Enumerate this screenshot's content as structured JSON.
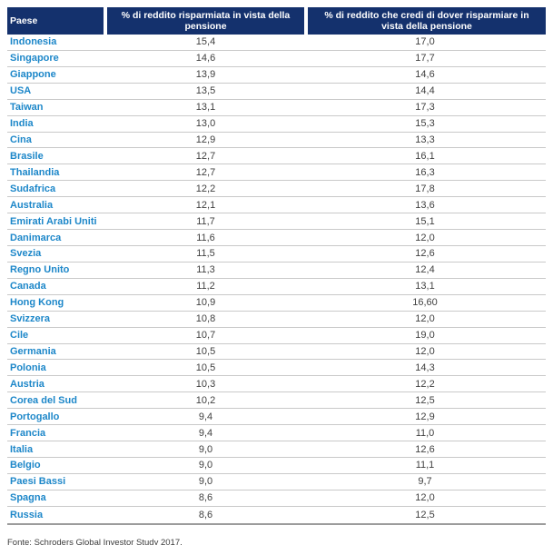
{
  "colors": {
    "header_bg": "#14316d",
    "country_text": "#1d87c9",
    "value_text": "#404040",
    "row_divider": "#c9c9c9",
    "bottom_rule": "#9c9c9c"
  },
  "table": {
    "headers": [
      "Paese",
      "% di reddito risparmiata in vista della pensione",
      "% di reddito che credi di dover risparmiare in vista della pensione"
    ],
    "rows": [
      {
        "paese": "Indonesia",
        "risparmiata": "15,4",
        "dover_risparmiare": "17,0"
      },
      {
        "paese": "Singapore",
        "risparmiata": "14,6",
        "dover_risparmiare": "17,7"
      },
      {
        "paese": "Giappone",
        "risparmiata": "13,9",
        "dover_risparmiare": "14,6"
      },
      {
        "paese": "USA",
        "risparmiata": "13,5",
        "dover_risparmiare": "14,4"
      },
      {
        "paese": "Taiwan",
        "risparmiata": "13,1",
        "dover_risparmiare": "17,3"
      },
      {
        "paese": "India",
        "risparmiata": "13,0",
        "dover_risparmiare": "15,3"
      },
      {
        "paese": "Cina",
        "risparmiata": "12,9",
        "dover_risparmiare": "13,3"
      },
      {
        "paese": "Brasile",
        "risparmiata": "12,7",
        "dover_risparmiare": "16,1"
      },
      {
        "paese": "Thailandia",
        "risparmiata": "12,7",
        "dover_risparmiare": "16,3"
      },
      {
        "paese": "Sudafrica",
        "risparmiata": "12,2",
        "dover_risparmiare": "17,8"
      },
      {
        "paese": "Australia",
        "risparmiata": "12,1",
        "dover_risparmiare": "13,6"
      },
      {
        "paese": "Emirati Arabi Uniti",
        "risparmiata": "11,7",
        "dover_risparmiare": "15,1"
      },
      {
        "paese": "Danimarca",
        "risparmiata": "11,6",
        "dover_risparmiare": "12,0"
      },
      {
        "paese": "Svezia",
        "risparmiata": "11,5",
        "dover_risparmiare": "12,6"
      },
      {
        "paese": "Regno Unito",
        "risparmiata": "11,3",
        "dover_risparmiare": "12,4"
      },
      {
        "paese": "Canada",
        "risparmiata": "11,2",
        "dover_risparmiare": "13,1"
      },
      {
        "paese": "Hong Kong",
        "risparmiata": "10,9",
        "dover_risparmiare": "16,60"
      },
      {
        "paese": "Svizzera",
        "risparmiata": "10,8",
        "dover_risparmiare": "12,0"
      },
      {
        "paese": "Cile",
        "risparmiata": "10,7",
        "dover_risparmiare": "19,0"
      },
      {
        "paese": "Germania",
        "risparmiata": "10,5",
        "dover_risparmiare": "12,0"
      },
      {
        "paese": "Polonia",
        "risparmiata": "10,5",
        "dover_risparmiare": "14,3"
      },
      {
        "paese": "Austria",
        "risparmiata": "10,3",
        "dover_risparmiare": "12,2"
      },
      {
        "paese": "Corea del Sud",
        "risparmiata": "10,2",
        "dover_risparmiare": "12,5"
      },
      {
        "paese": "Portogallo",
        "risparmiata": "9,4",
        "dover_risparmiare": "12,9"
      },
      {
        "paese": "Francia",
        "risparmiata": "9,4",
        "dover_risparmiare": "11,0"
      },
      {
        "paese": "Italia",
        "risparmiata": "9,0",
        "dover_risparmiare": "12,6"
      },
      {
        "paese": "Belgio",
        "risparmiata": "9,0",
        "dover_risparmiare": "11,1"
      },
      {
        "paese": "Paesi Bassi",
        "risparmiata": "9,0",
        "dover_risparmiare": "9,7"
      },
      {
        "paese": "Spagna",
        "risparmiata": "8,6",
        "dover_risparmiare": "12,0"
      },
      {
        "paese": "Russia",
        "risparmiata": "8,6",
        "dover_risparmiare": "12,5"
      }
    ]
  },
  "footer": {
    "source": "Fonte: Schroders Global Investor Study 2017."
  },
  "chart_data": {
    "type": "table",
    "title": "",
    "columns": [
      "Paese",
      "% di reddito risparmiata in vista della pensione",
      "% di reddito che credi di dover risparmiare in vista della pensione"
    ],
    "rows": [
      [
        "Indonesia",
        15.4,
        17.0
      ],
      [
        "Singapore",
        14.6,
        17.7
      ],
      [
        "Giappone",
        13.9,
        14.6
      ],
      [
        "USA",
        13.5,
        14.4
      ],
      [
        "Taiwan",
        13.1,
        17.3
      ],
      [
        "India",
        13.0,
        15.3
      ],
      [
        "Cina",
        12.9,
        13.3
      ],
      [
        "Brasile",
        12.7,
        16.1
      ],
      [
        "Thailandia",
        12.7,
        16.3
      ],
      [
        "Sudafrica",
        12.2,
        17.8
      ],
      [
        "Australia",
        12.1,
        13.6
      ],
      [
        "Emirati Arabi Uniti",
        11.7,
        15.1
      ],
      [
        "Danimarca",
        11.6,
        12.0
      ],
      [
        "Svezia",
        11.5,
        12.6
      ],
      [
        "Regno Unito",
        11.3,
        12.4
      ],
      [
        "Canada",
        11.2,
        13.1
      ],
      [
        "Hong Kong",
        10.9,
        16.6
      ],
      [
        "Svizzera",
        10.8,
        12.0
      ],
      [
        "Cile",
        10.7,
        19.0
      ],
      [
        "Germania",
        10.5,
        12.0
      ],
      [
        "Polonia",
        10.5,
        14.3
      ],
      [
        "Austria",
        10.3,
        12.2
      ],
      [
        "Corea del Sud",
        10.2,
        12.5
      ],
      [
        "Portogallo",
        9.4,
        12.9
      ],
      [
        "Francia",
        9.4,
        11.0
      ],
      [
        "Italia",
        9.0,
        12.6
      ],
      [
        "Belgio",
        9.0,
        11.1
      ],
      [
        "Paesi Bassi",
        9.0,
        9.7
      ],
      [
        "Spagna",
        8.6,
        12.0
      ],
      [
        "Russia",
        8.6,
        12.5
      ]
    ],
    "source_note": "Fonte: Schroders Global Investor Study 2017."
  }
}
